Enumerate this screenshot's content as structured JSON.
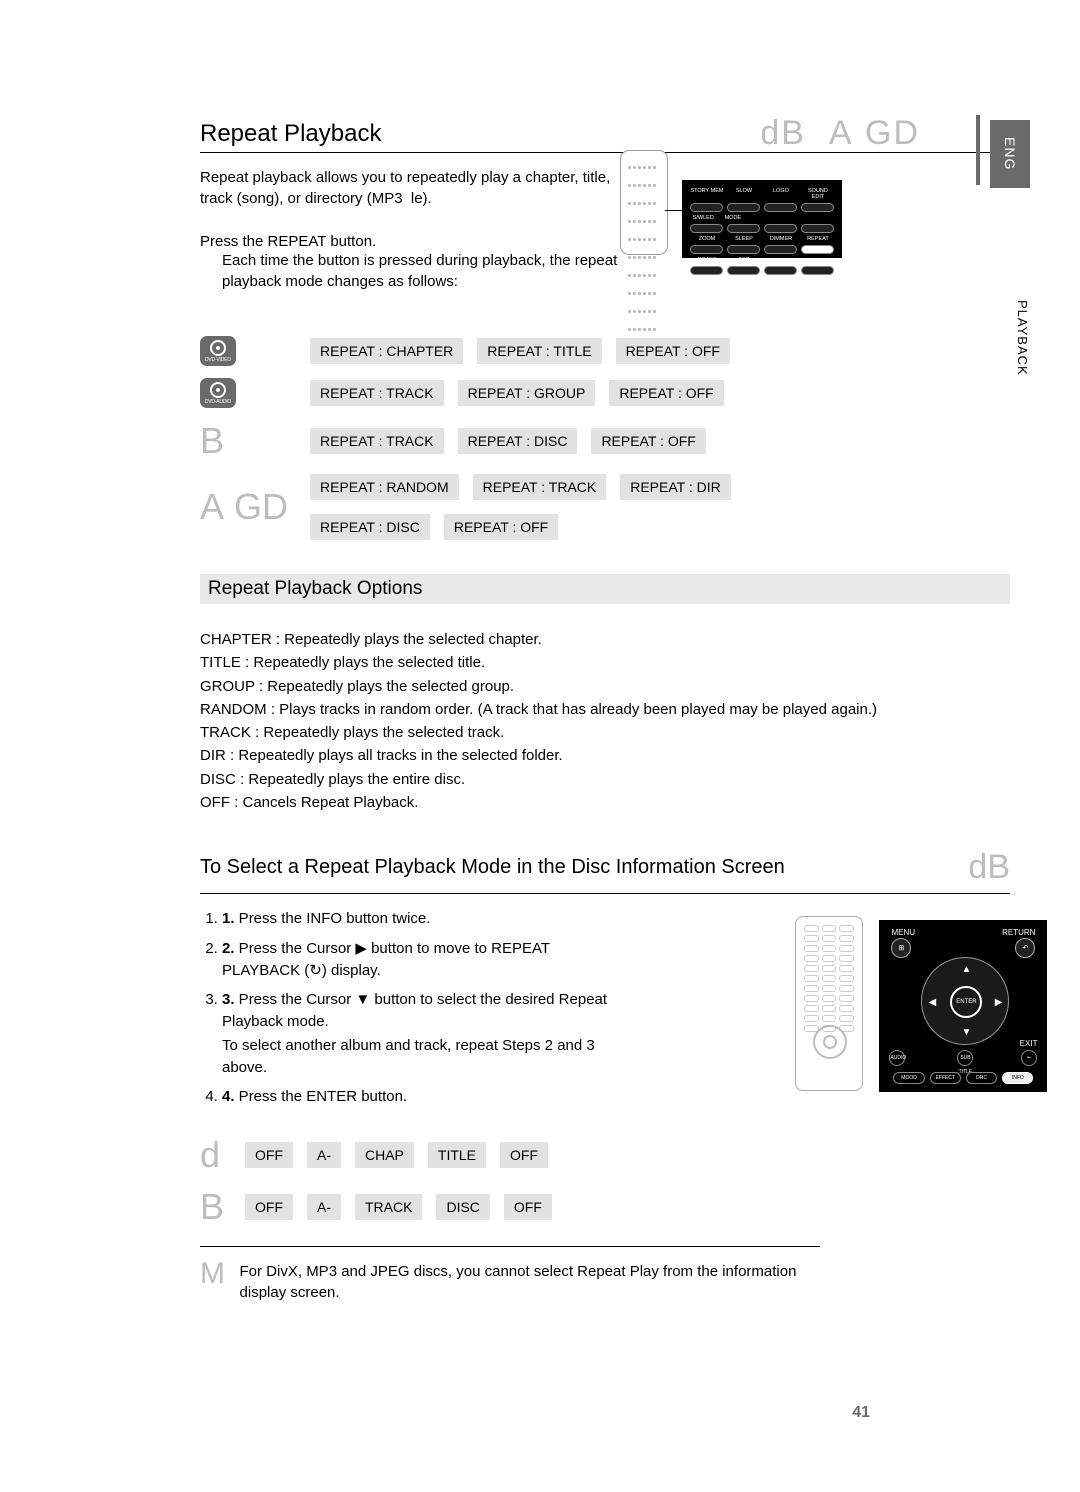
{
  "lang_tab": "ENG",
  "side_tab": "PLAYBACK",
  "section_title": "Repeat Playback",
  "top_right": "dB  A GD",
  "intro": "Repeat playback allows you to repeatedly play a chapter, title, track (song), or directory (MP3  le).",
  "press_repeat": "Press the REPEAT button.",
  "press_repeat_sub": "Each time the button is pressed during playback, the repeat playback mode changes as follows:",
  "panel1": {
    "labels": [
      [
        "STORY MEM",
        "SLOW",
        "LOGO",
        "SOUND EDIT"
      ],
      [
        "S/WLED",
        "MODE",
        "",
        "",
        ""
      ],
      [
        "ZOOM",
        "SLEEP",
        "DIMMER",
        "REPEAT"
      ],
      [
        "P.BASS",
        "ASC",
        "",
        ""
      ]
    ],
    "highlight_row": 2,
    "highlight_col": 3
  },
  "modes": [
    {
      "icon": {
        "type": "disc",
        "sub": "DVD-VIDEO"
      },
      "chips": [
        "REPEAT : CHAPTER",
        "REPEAT : TITLE",
        "REPEAT : OFF"
      ]
    },
    {
      "icon": {
        "type": "disc",
        "sub": "DVD-AUDIO"
      },
      "chips": [
        "REPEAT : TRACK",
        "REPEAT : GROUP",
        "REPEAT : OFF"
      ]
    },
    {
      "icon": {
        "type": "letter",
        "text": "B"
      },
      "chips": [
        "REPEAT : TRACK",
        "REPEAT : DISC",
        "REPEAT : OFF"
      ]
    },
    {
      "icon": {
        "type": "letter",
        "text": "A GD"
      },
      "chips": [
        "REPEAT : RANDOM",
        "REPEAT : TRACK",
        "REPEAT : DIR",
        "REPEAT : DISC",
        "REPEAT : OFF"
      ]
    }
  ],
  "options_heading": "Repeat Playback Options",
  "options": [
    "CHAPTER : Repeatedly plays the selected chapter.",
    "TITLE : Repeatedly plays the selected title.",
    "GROUP : Repeatedly plays the selected group.",
    "RANDOM : Plays tracks in random order. (A track that has already been played may be played again.)",
    "TRACK : Repeatedly plays the selected track.",
    "DIR : Repeatedly plays all tracks in the selected folder.",
    "DISC : Repeatedly plays the entire disc.",
    "OFF : Cancels Repeat Playback."
  ],
  "select_heading": "To Select a Repeat Playback Mode in the Disc Information Screen",
  "select_icon": "dB",
  "steps": [
    {
      "n": "1.",
      "text": "Press the INFO button twice."
    },
    {
      "n": "2.",
      "text": "Press the Cursor ▶ button to move to REPEAT PLAYBACK (↻) display."
    },
    {
      "n": "3.",
      "text": "Press the Cursor ▼ button to select the desired Repeat Playback mode.",
      "sub": "To select another album and track, repeat Steps 2 and 3 above."
    },
    {
      "n": "4.",
      "text": "Press the ENTER button."
    }
  ],
  "nav_panel": {
    "menu": "MENU",
    "return": "RETURN",
    "enter": "ENTER",
    "exit": "EXIT",
    "audio": "AUDIO",
    "sub": "SUB TITLE",
    "pills": [
      "MOOD",
      "EFFECT",
      "DRC",
      "INFO"
    ],
    "highlight_pill": 3
  },
  "bottom_chips": [
    {
      "letter": "d",
      "chips": [
        "OFF",
        "A-",
        "CHAP",
        "TITLE",
        "OFF"
      ]
    },
    {
      "letter": "B",
      "chips": [
        "OFF",
        "A-",
        "TRACK",
        "DISC",
        "OFF"
      ]
    }
  ],
  "note_letter": "M",
  "note_text": "For DivX, MP3 and JPEG discs, you cannot select Repeat Play from the information display screen.",
  "page_num": "41",
  "colors": {
    "gray_text": "#bdbdbd",
    "tab_bg": "#6a6a6a",
    "chip_bg": "#e2e2e2",
    "panel_bg": "#000000"
  }
}
